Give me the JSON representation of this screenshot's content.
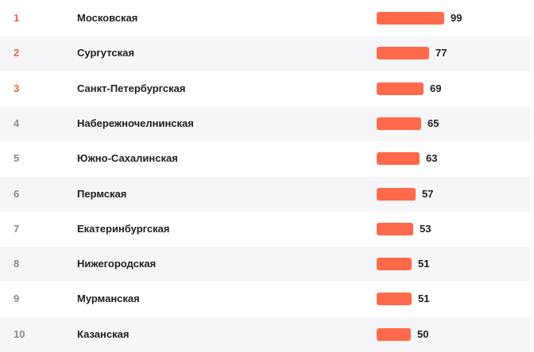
{
  "colors": {
    "bar": "#ff6a4b",
    "top_rank": "#e8603f",
    "other_rank": "#8a8a8a",
    "text": "#1f1f1f",
    "alt_row": "#f6f6f8"
  },
  "chart_data": {
    "type": "bar",
    "categories": [
      "Московская",
      "Сургутская",
      "Санкт-Петербургская",
      "Набережночелнинская",
      "Южно-Сахалинская",
      "Пермская",
      "Екатеринбургская",
      "Нижегородская",
      "Мурманская",
      "Казанская"
    ],
    "values": [
      99,
      77,
      69,
      65,
      63,
      57,
      53,
      51,
      51,
      50
    ],
    "xlim": [
      0,
      100
    ]
  },
  "rows": [
    {
      "rank": "1",
      "name": "Московская",
      "score": "99"
    },
    {
      "rank": "2",
      "name": "Сургутская",
      "score": "77"
    },
    {
      "rank": "3",
      "name": "Санкт-Петербургская",
      "score": "69"
    },
    {
      "rank": "4",
      "name": "Набережночелнинская",
      "score": "65"
    },
    {
      "rank": "5",
      "name": "Южно-Сахалинская",
      "score": "63"
    },
    {
      "rank": "6",
      "name": "Пермская",
      "score": "57"
    },
    {
      "rank": "7",
      "name": "Екатеринбургская",
      "score": "53"
    },
    {
      "rank": "8",
      "name": "Нижегородская",
      "score": "51"
    },
    {
      "rank": "9",
      "name": "Мурманская",
      "score": "51"
    },
    {
      "rank": "10",
      "name": "Казанская",
      "score": "50"
    }
  ]
}
